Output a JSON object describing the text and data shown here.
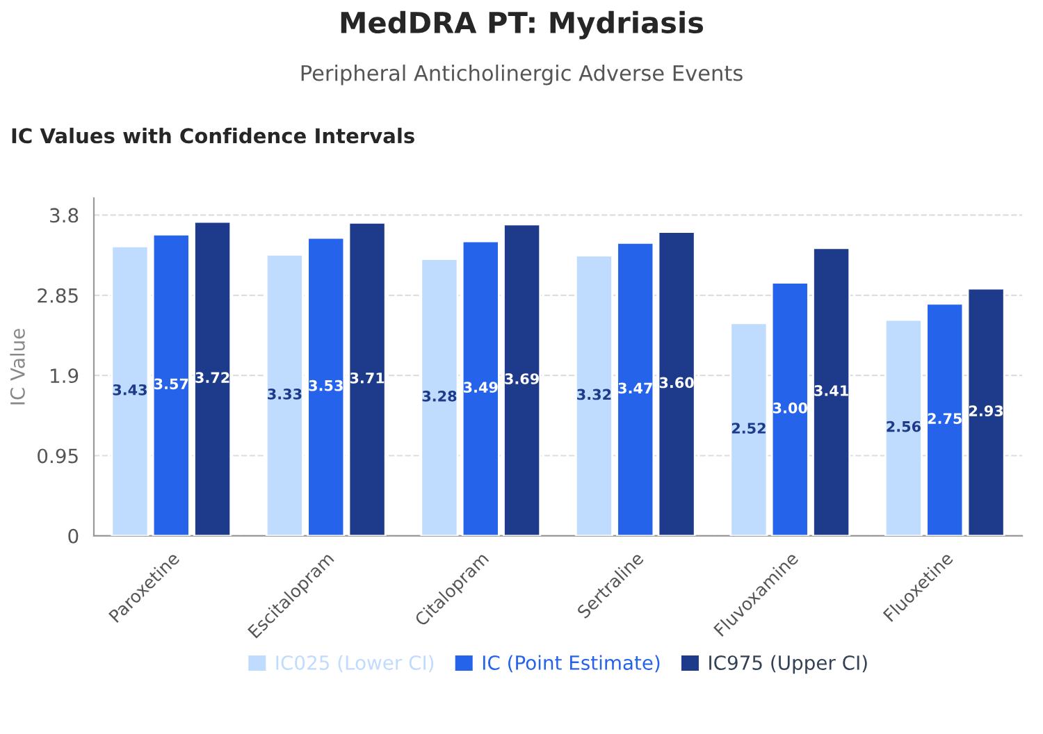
{
  "chart_data": {
    "type": "bar",
    "title": "MedDRA PT: Mydriasis",
    "subtitle": "Peripheral Anticholinergic Adverse Events",
    "annotations": [
      "IC Values with Confidence Intervals"
    ],
    "ylabel": "IC Value",
    "categories": [
      "Paroxetine",
      "Escitalopram",
      "Citalopram",
      "Sertraline",
      "Fluvoxamine",
      "Fluoxetine"
    ],
    "series": [
      {
        "name": "IC025 (Lower CI)",
        "color": "#bfdbfe",
        "values": [
          3.43,
          3.33,
          3.28,
          3.32,
          2.52,
          2.56
        ],
        "value_labels": [
          "3.43",
          "3.33",
          "3.28",
          "3.32",
          "2.52",
          "2.56"
        ]
      },
      {
        "name": "IC (Point Estimate)",
        "color": "#2563eb",
        "values": [
          3.57,
          3.53,
          3.49,
          3.47,
          3.0,
          2.75
        ],
        "value_labels": [
          "3.57",
          "3.53",
          "3.49",
          "3.47",
          "3.00",
          "2.75"
        ]
      },
      {
        "name": "IC975 (Upper CI)",
        "color": "#1e3a8a",
        "values": [
          3.72,
          3.71,
          3.69,
          3.6,
          3.41,
          2.93
        ],
        "value_labels": [
          "3.72",
          "3.71",
          "3.69",
          "3.60",
          "3.41",
          "2.93"
        ]
      }
    ],
    "ylim": [
      0,
      4
    ],
    "yticks": [
      0,
      0.95,
      1.9,
      2.85,
      3.8
    ],
    "grid": "y",
    "legend": "bottom"
  }
}
